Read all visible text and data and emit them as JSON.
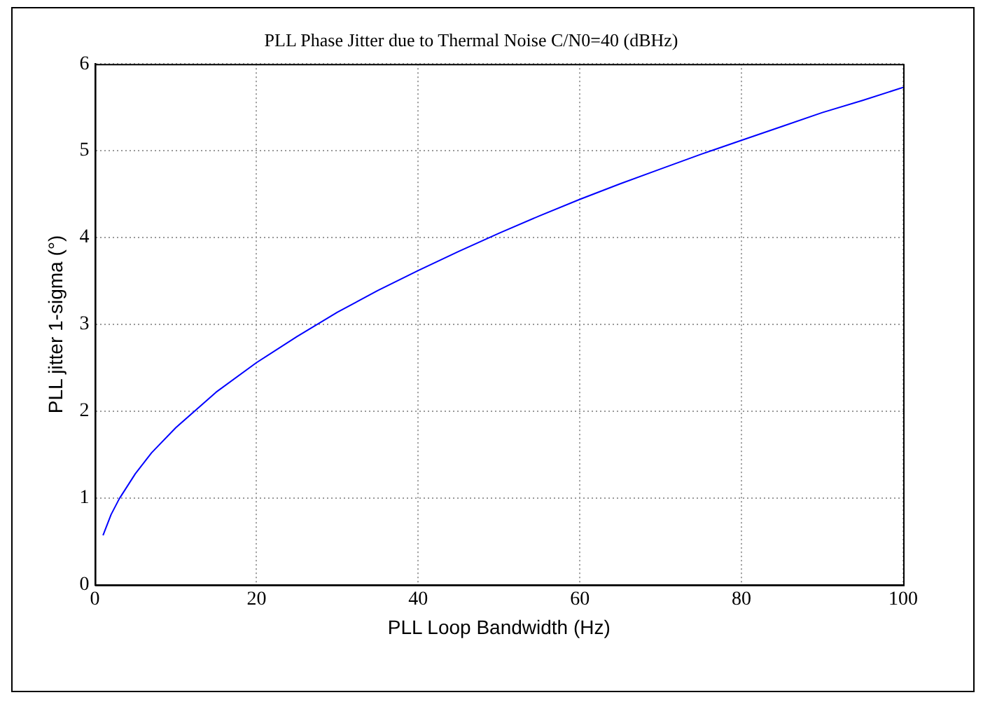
{
  "chart_data": {
    "type": "line",
    "title": "PLL Phase Jitter due to Thermal Noise C/N0=40 (dBHz)",
    "xlabel": "PLL Loop Bandwidth (Hz)",
    "ylabel": "PLL jitter 1-sigma (°)",
    "x": [
      1,
      2,
      3,
      5,
      7,
      10,
      15,
      20,
      25,
      30,
      35,
      40,
      45,
      50,
      55,
      60,
      65,
      70,
      75,
      80,
      85,
      90,
      95,
      100
    ],
    "series": [
      {
        "color": "#0000ff",
        "values": [
          0.57,
          0.81,
          0.99,
          1.28,
          1.52,
          1.81,
          2.22,
          2.56,
          2.86,
          3.14,
          3.39,
          3.62,
          3.84,
          4.05,
          4.25,
          4.44,
          4.62,
          4.79,
          4.96,
          5.12,
          5.28,
          5.44,
          5.58,
          5.73
        ]
      }
    ],
    "xlim": [
      0,
      100
    ],
    "xticks": [
      0,
      20,
      40,
      60,
      80,
      100
    ],
    "ylim": [
      0,
      6
    ],
    "yticks": [
      0,
      1,
      2,
      3,
      4,
      5,
      6
    ],
    "grid": true,
    "legend": false,
    "marker": "none",
    "line_style": "solid"
  }
}
